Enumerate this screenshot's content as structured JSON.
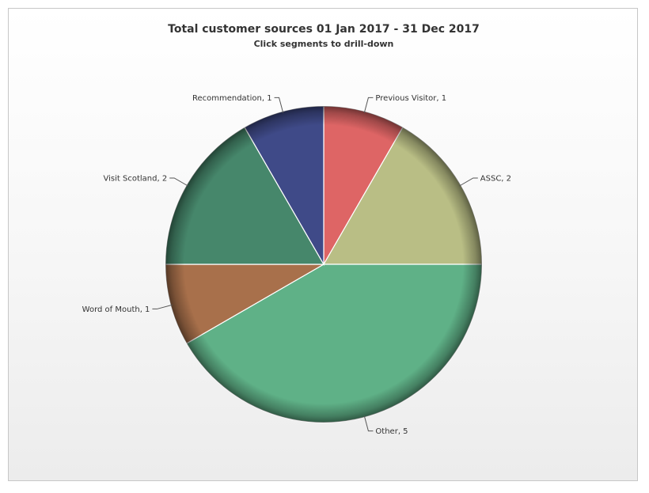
{
  "chart_data": {
    "type": "pie",
    "title": "Total customer sources 01 Jan 2017 - 31 Dec 2017",
    "subtitle": "Click segments to drill-down",
    "slices": [
      {
        "label": "Previous Visitor",
        "value": 1,
        "color": "#de6565"
      },
      {
        "label": "ASSC",
        "value": 2,
        "color": "#b9be85"
      },
      {
        "label": "Other",
        "value": 5,
        "color": "#5fb187"
      },
      {
        "label": "Word of Mouth",
        "value": 1,
        "color": "#a8704b"
      },
      {
        "label": "Visit Scotland",
        "value": 2,
        "color": "#46876b"
      },
      {
        "label": "Recommendation",
        "value": 1,
        "color": "#3f4a88"
      }
    ]
  }
}
